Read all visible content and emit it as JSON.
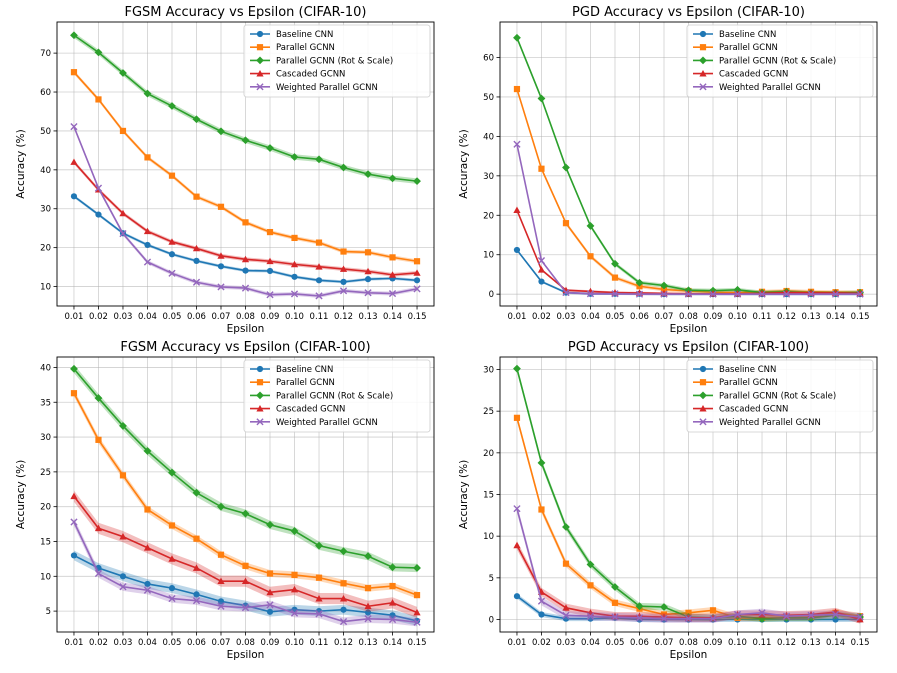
{
  "colors": {
    "Baseline CNN": "#1f77b4",
    "Parallel GCNN": "#ff7f0e",
    "Parallel GCNN (Rot & Scale)": "#2ca02c",
    "Cascaded GCNN": "#d62728",
    "Weighted Parallel GCNN": "#9467bd"
  },
  "markers": {
    "Baseline CNN": "circle",
    "Parallel GCNN": "square",
    "Parallel GCNN (Rot & Scale)": "diamond",
    "Cascaded GCNN": "triangle",
    "Weighted Parallel GCNN": "x"
  },
  "chart_data": [
    {
      "type": "line",
      "title": "FGSM Accuracy vs Epsilon (CIFAR-10)",
      "xlabel": "Epsilon",
      "ylabel": "Accuracy (%)",
      "ylim": [
        5,
        78
      ],
      "yticks": [
        10,
        20,
        30,
        40,
        50,
        60,
        70
      ],
      "grid": true,
      "legend": "top-right",
      "x": [
        "0.01",
        "0.02",
        "0.03",
        "0.04",
        "0.05",
        "0.06",
        "0.07",
        "0.08",
        "0.09",
        "0.10",
        "0.11",
        "0.12",
        "0.13",
        "0.14",
        "0.15"
      ],
      "series": [
        {
          "name": "Baseline CNN",
          "values": [
            33.2,
            28.5,
            23.7,
            20.7,
            18.3,
            16.6,
            15.2,
            14.1,
            14.0,
            12.5,
            11.6,
            11.2,
            11.9,
            12.1,
            11.6
          ],
          "band": 0.4
        },
        {
          "name": "Parallel GCNN",
          "values": [
            65.1,
            58.1,
            50.0,
            43.2,
            38.5,
            33.1,
            30.5,
            26.5,
            24.0,
            22.5,
            21.3,
            19.0,
            18.8,
            17.5,
            16.5
          ],
          "band": 0.5
        },
        {
          "name": "Parallel GCNN (Rot & Scale)",
          "values": [
            74.6,
            70.2,
            64.9,
            59.6,
            56.4,
            53.0,
            49.9,
            47.6,
            45.6,
            43.3,
            42.7,
            40.6,
            38.9,
            37.8,
            37.1
          ],
          "band": 0.7
        },
        {
          "name": "Cascaded GCNN",
          "values": [
            42.0,
            34.9,
            28.8,
            24.2,
            21.5,
            19.8,
            17.9,
            17.0,
            16.5,
            15.7,
            15.1,
            14.5,
            13.9,
            13.0,
            13.5
          ],
          "band": 0.5
        },
        {
          "name": "Weighted Parallel GCNN",
          "values": [
            51.1,
            35.3,
            23.6,
            16.3,
            13.4,
            11.1,
            9.9,
            9.6,
            7.9,
            8.1,
            7.6,
            8.9,
            8.4,
            8.2,
            9.4
          ],
          "band": 0.5
        }
      ]
    },
    {
      "type": "line",
      "title": "PGD Accuracy vs Epsilon (CIFAR-10)",
      "xlabel": "Epsilon",
      "ylabel": "Accuracy (%)",
      "ylim": [
        -3,
        69
      ],
      "yticks": [
        0,
        10,
        20,
        30,
        40,
        50,
        60
      ],
      "grid": true,
      "legend": "top-right",
      "x": [
        "0.01",
        "0.02",
        "0.03",
        "0.04",
        "0.05",
        "0.06",
        "0.07",
        "0.08",
        "0.09",
        "0.10",
        "0.11",
        "0.12",
        "0.13",
        "0.14",
        "0.15"
      ],
      "series": [
        {
          "name": "Baseline CNN",
          "values": [
            11.2,
            3.2,
            0.4,
            0.1,
            0.1,
            0.1,
            0.0,
            0.0,
            0.0,
            0.0,
            0.0,
            0.0,
            0.0,
            0.0,
            0.0
          ],
          "band": 0.3
        },
        {
          "name": "Parallel GCNN",
          "values": [
            52.0,
            31.8,
            18.0,
            9.6,
            4.2,
            2.0,
            1.2,
            0.8,
            0.5,
            0.4,
            0.6,
            0.8,
            0.6,
            0.5,
            0.5
          ],
          "band": 0.5
        },
        {
          "name": "Parallel GCNN (Rot & Scale)",
          "values": [
            65.0,
            49.6,
            32.1,
            17.3,
            7.7,
            2.9,
            2.2,
            1.0,
            0.9,
            1.1,
            0.4,
            0.6,
            0.3,
            0.3,
            0.4
          ],
          "band": 0.5
        },
        {
          "name": "Cascaded GCNN",
          "values": [
            21.3,
            6.2,
            1.0,
            0.7,
            0.4,
            0.3,
            0.2,
            0.1,
            0.1,
            0.1,
            0.2,
            0.4,
            0.3,
            0.3,
            0.2
          ],
          "band": 0.3
        },
        {
          "name": "Weighted Parallel GCNN",
          "values": [
            38.0,
            8.5,
            0.4,
            0.1,
            0.1,
            0.0,
            0.0,
            0.0,
            0.0,
            0.0,
            0.0,
            0.0,
            0.0,
            0.0,
            0.0
          ],
          "band": 0.3
        }
      ]
    },
    {
      "type": "line",
      "title": "FGSM Accuracy vs Epsilon (CIFAR-100)",
      "xlabel": "Epsilon",
      "ylabel": "Accuracy (%)",
      "ylim": [
        2,
        41.5
      ],
      "yticks": [
        5,
        10,
        15,
        20,
        25,
        30,
        35,
        40
      ],
      "grid": true,
      "legend": "top-right",
      "x": [
        "0.01",
        "0.02",
        "0.03",
        "0.04",
        "0.05",
        "0.06",
        "0.07",
        "0.08",
        "0.09",
        "0.10",
        "0.11",
        "0.12",
        "0.13",
        "0.14",
        "0.15"
      ],
      "series": [
        {
          "name": "Baseline CNN",
          "values": [
            13.0,
            11.2,
            10.0,
            8.9,
            8.3,
            7.4,
            6.4,
            5.8,
            4.9,
            5.2,
            5.0,
            5.2,
            4.8,
            4.4,
            3.6
          ],
          "band": 0.7
        },
        {
          "name": "Parallel GCNN",
          "values": [
            36.3,
            29.6,
            24.5,
            19.6,
            17.3,
            15.4,
            13.1,
            11.5,
            10.4,
            10.2,
            9.8,
            9.0,
            8.3,
            8.6,
            7.3
          ],
          "band": 0.5
        },
        {
          "name": "Parallel GCNN (Rot & Scale)",
          "values": [
            39.8,
            35.6,
            31.6,
            28.0,
            24.9,
            22.0,
            20.0,
            19.0,
            17.4,
            16.5,
            14.4,
            13.6,
            12.9,
            11.3,
            11.2
          ],
          "band": 0.6
        },
        {
          "name": "Cascaded GCNN",
          "values": [
            21.5,
            16.9,
            15.7,
            14.1,
            12.5,
            11.2,
            9.3,
            9.3,
            7.7,
            8.1,
            6.8,
            6.8,
            5.7,
            6.2,
            4.8
          ],
          "band": 0.8
        },
        {
          "name": "Weighted Parallel GCNN",
          "values": [
            17.8,
            10.4,
            8.5,
            8.0,
            6.8,
            6.5,
            5.7,
            5.5,
            5.9,
            4.7,
            4.6,
            3.5,
            3.9,
            3.8,
            3.4
          ],
          "band": 0.6
        }
      ]
    },
    {
      "type": "line",
      "title": "PGD Accuracy vs Epsilon (CIFAR-100)",
      "xlabel": "Epsilon",
      "ylabel": "Accuracy (%)",
      "ylim": [
        -1.5,
        31.5
      ],
      "yticks": [
        0,
        5,
        10,
        15,
        20,
        25,
        30
      ],
      "grid": true,
      "legend": "top-right",
      "x": [
        "0.01",
        "0.02",
        "0.03",
        "0.04",
        "0.05",
        "0.06",
        "0.07",
        "0.08",
        "0.09",
        "0.10",
        "0.11",
        "0.12",
        "0.13",
        "0.14",
        "0.15"
      ],
      "series": [
        {
          "name": "Baseline CNN",
          "values": [
            2.8,
            0.6,
            0.1,
            0.1,
            0.2,
            0.0,
            0.0,
            0.0,
            0.0,
            0.0,
            0.0,
            0.0,
            0.0,
            0.0,
            0.0
          ],
          "band": 0.3
        },
        {
          "name": "Parallel GCNN",
          "values": [
            24.2,
            13.2,
            6.7,
            4.1,
            2.0,
            1.3,
            0.6,
            0.8,
            1.1,
            0.2,
            0.2,
            0.3,
            0.3,
            0.8,
            0.4
          ],
          "band": 0.4
        },
        {
          "name": "Parallel GCNN (Rot & Scale)",
          "values": [
            30.1,
            18.8,
            11.1,
            6.6,
            3.9,
            1.6,
            1.5,
            0.3,
            0.2,
            0.4,
            0.1,
            0.2,
            0.2,
            0.5,
            0.3
          ],
          "band": 0.4
        },
        {
          "name": "Cascaded GCNN",
          "values": [
            8.9,
            3.3,
            1.4,
            0.8,
            0.4,
            0.4,
            0.3,
            0.2,
            0.2,
            0.6,
            0.6,
            0.5,
            0.6,
            0.9,
            0.0
          ],
          "band": 0.5
        },
        {
          "name": "Weighted Parallel GCNN",
          "values": [
            13.3,
            2.2,
            0.5,
            0.4,
            0.3,
            0.2,
            0.1,
            0.1,
            0.1,
            0.6,
            0.8,
            0.4,
            0.5,
            0.6,
            0.3
          ],
          "band": 0.5
        }
      ]
    }
  ]
}
